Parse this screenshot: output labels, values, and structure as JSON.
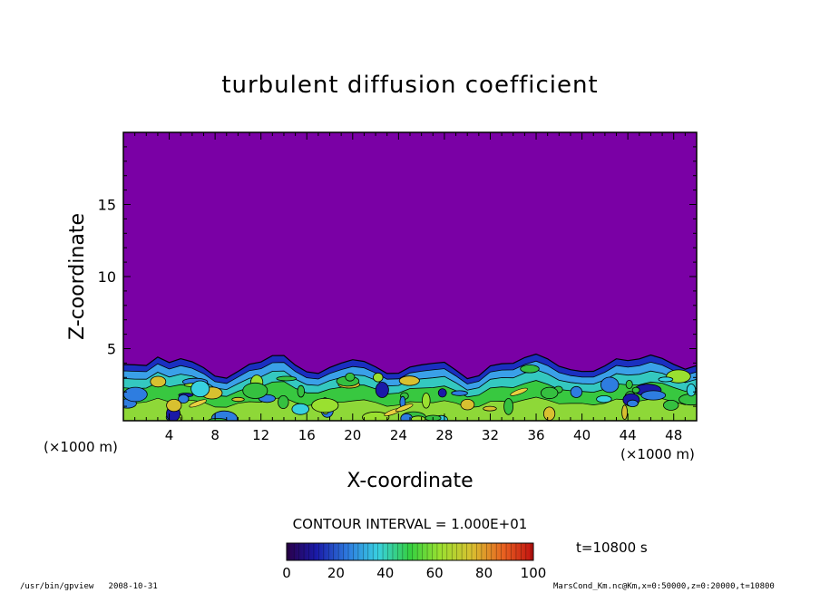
{
  "chart_data": {
    "type": "heatmap",
    "title": "turbulent diffusion coefficient",
    "xlabel": "X-coordinate",
    "ylabel": "Z-coordinate",
    "x_unit": "(×1000 m)",
    "x_unit_right": "(×1000 m)",
    "xlim": [
      0,
      50
    ],
    "ylim": [
      0,
      20
    ],
    "x_ticks": [
      "4",
      "8",
      "12",
      "16",
      "20",
      "24",
      "28",
      "32",
      "36",
      "40",
      "44",
      "48"
    ],
    "x_tick_values": [
      4,
      8,
      12,
      16,
      20,
      24,
      28,
      32,
      36,
      40,
      44,
      48
    ],
    "y_ticks": [
      "5",
      "10",
      "15"
    ],
    "y_tick_values": [
      5,
      10,
      15
    ],
    "contour_interval": "CONTOUR INTERVAL = 1.000E+01",
    "time_label": "t=10800 s",
    "colorbar": {
      "min": 0,
      "max": 100,
      "ticks": [
        "0",
        "20",
        "40",
        "60",
        "80",
        "100"
      ],
      "tick_values": [
        0,
        20,
        40,
        60,
        80,
        100
      ]
    },
    "boundary_layer_top_km": [
      3.9,
      4.0,
      3.8,
      4.3,
      4.1,
      4.4,
      4.0,
      3.6,
      3.2,
      3.0,
      3.3,
      3.9,
      4.2,
      4.5,
      4.4,
      3.9,
      3.5,
      3.2,
      3.6,
      4.1,
      4.3,
      4.0,
      3.7,
      3.4,
      3.3,
      3.6,
      3.9,
      4.1,
      4.0,
      3.4,
      3.0,
      3.2,
      3.7,
      3.9,
      4.1,
      4.4,
      4.5,
      4.3,
      3.9,
      3.5,
      3.3,
      3.5,
      3.9,
      4.2,
      4.1,
      4.4,
      4.6,
      4.2,
      3.9,
      3.7,
      3.8
    ],
    "background_value": 0,
    "colors": {
      "background_purple": "#7a00a5"
    }
  },
  "footer": {
    "left_path": "/usr/bin/gpview",
    "left_date": "2008-10-31",
    "right_info": "MarsCond_Km.nc@Km,x=0:50000,z=0:20000,t=10800"
  }
}
